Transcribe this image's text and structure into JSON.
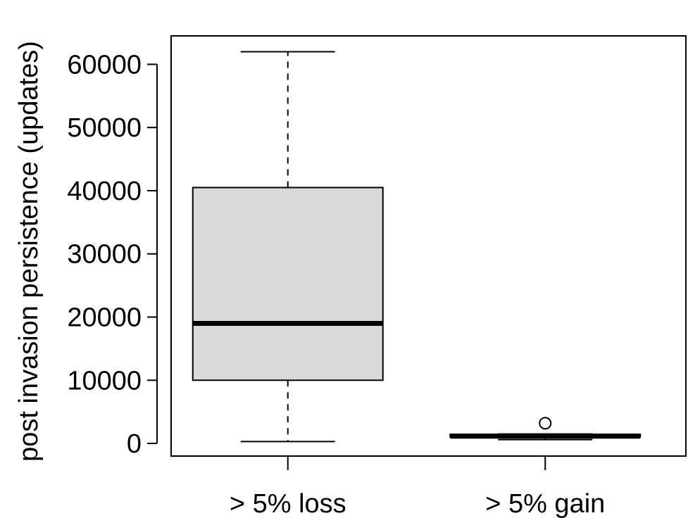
{
  "chart_data": {
    "type": "boxplot",
    "title": "",
    "xlabel": "",
    "ylabel": "post invasion persistence (updates)",
    "ylim": [
      -2000,
      64500
    ],
    "yticks": [
      0,
      10000,
      20000,
      30000,
      40000,
      50000,
      60000
    ],
    "ytick_labels": [
      "0",
      "10000",
      "20000",
      "30000",
      "40000",
      "50000",
      "60000"
    ],
    "grid": false,
    "legend": "none",
    "categories": [
      "> 5% loss",
      "> 5% gain"
    ],
    "boxes": [
      {
        "category": "> 5% loss",
        "whisker_low": 300,
        "q1": 10000,
        "median": 19000,
        "q3": 40500,
        "whisker_high": 62000,
        "outliers": []
      },
      {
        "category": "> 5% gain",
        "whisker_low": 600,
        "q1": 1050,
        "median": 1150,
        "q3": 1450,
        "whisker_high": 1500,
        "outliers": [
          3200
        ]
      }
    ],
    "colors": {
      "box_fill": "#d9d9d9",
      "stroke": "#000000"
    }
  }
}
